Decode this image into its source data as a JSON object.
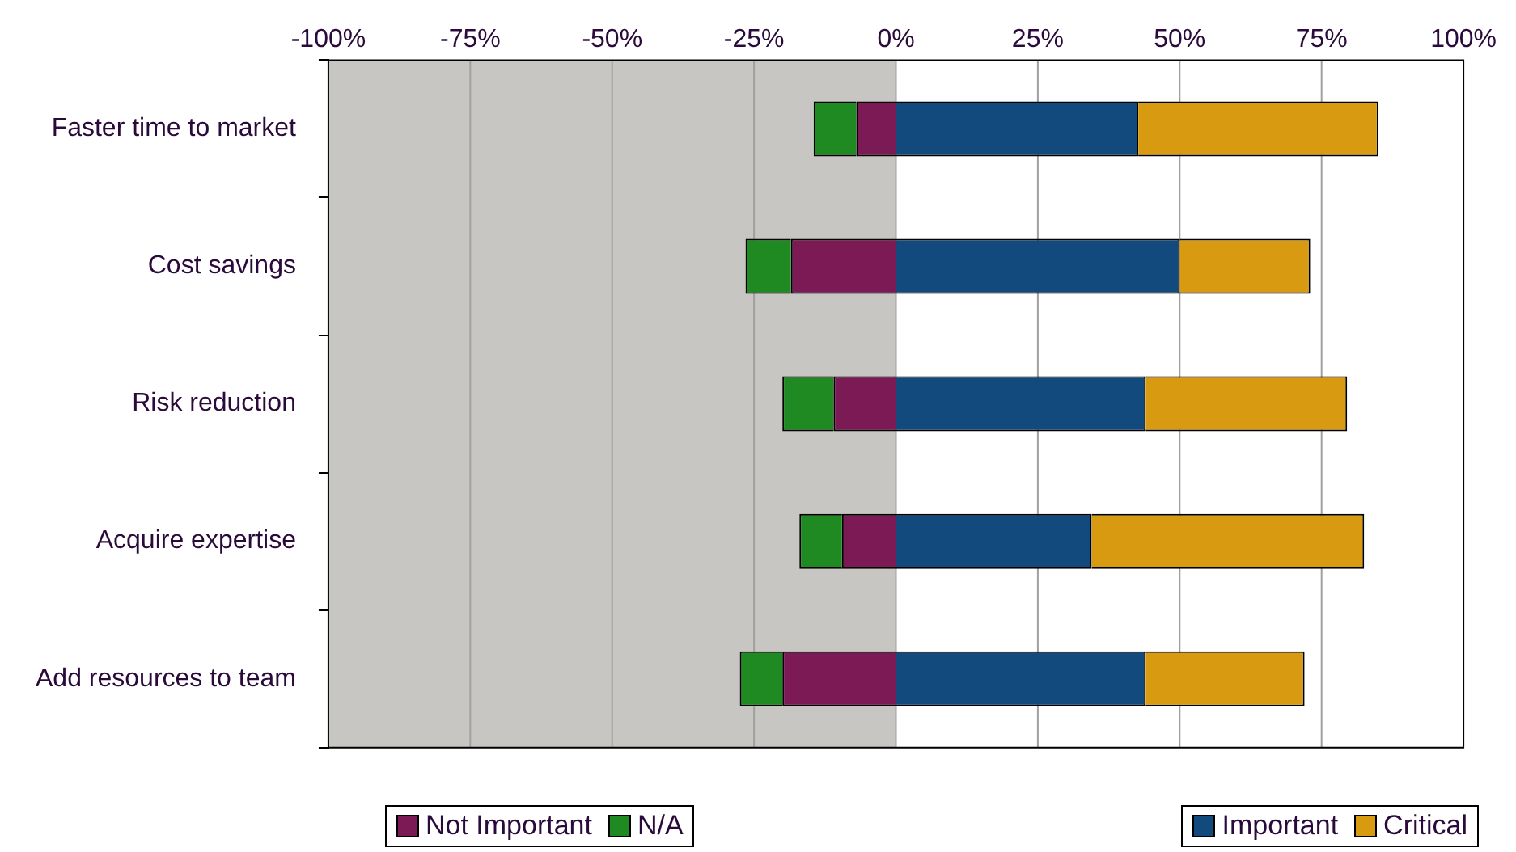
{
  "chart_data": {
    "type": "bar",
    "orientation": "horizontal",
    "stacked": true,
    "categories": [
      "Faster time to market",
      "Cost savings",
      "Risk reduction",
      "Acquire expertise",
      "Add resources to team"
    ],
    "series": [
      {
        "name": "Not Important",
        "color": "#7b1a55",
        "values": [
          -7,
          -18.5,
          -11,
          -9.5,
          -20
        ]
      },
      {
        "name": "N/A",
        "color": "#1f8a22",
        "values": [
          -7.5,
          -8,
          -9,
          -7.5,
          -7.5
        ]
      },
      {
        "name": "Important",
        "color": "#134a7e",
        "values": [
          42.7,
          50,
          44,
          34.5,
          44
        ]
      },
      {
        "name": "Critical",
        "color": "#d89a10",
        "values": [
          42.3,
          23,
          35.5,
          48,
          28
        ]
      }
    ],
    "xlim": [
      -100,
      100
    ],
    "xticks": [
      {
        "value": -100,
        "label": "-100%"
      },
      {
        "value": -75,
        "label": "-75%"
      },
      {
        "value": -50,
        "label": "-50%"
      },
      {
        "value": -25,
        "label": "-25%"
      },
      {
        "value": 0,
        "label": "0%"
      },
      {
        "value": 25,
        "label": "25%"
      },
      {
        "value": 50,
        "label": "50%"
      },
      {
        "value": 75,
        "label": "75%"
      },
      {
        "value": 100,
        "label": "100%"
      }
    ],
    "bands": [
      {
        "axis": "x",
        "from": -100,
        "to": 0,
        "color": "#c8c6c2"
      }
    ],
    "grid": "x",
    "legend": "bottom"
  }
}
